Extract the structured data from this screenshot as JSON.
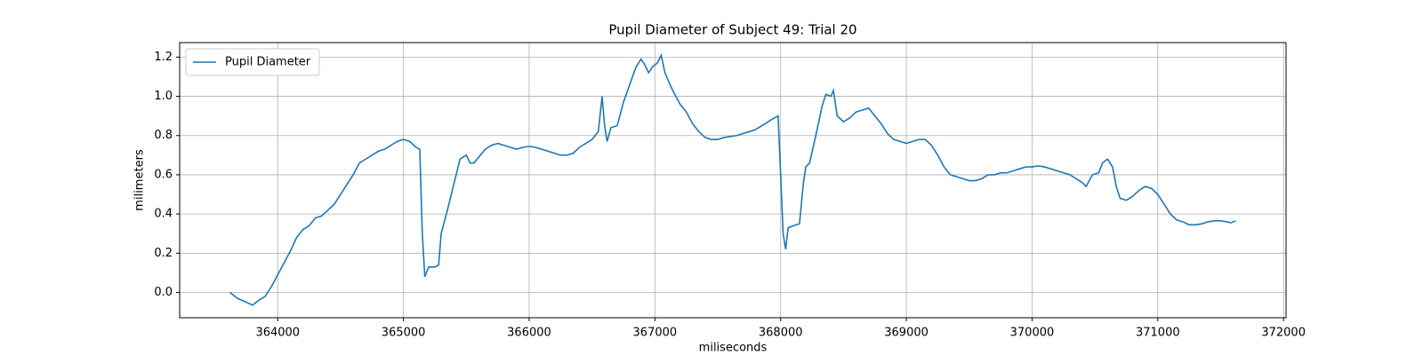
{
  "chart_data": {
    "type": "line",
    "title": "Pupil Diameter of Subject 49: Trial 20",
    "xlabel": "miliseconds",
    "ylabel": "milimeters",
    "x": [
      363620,
      363680,
      363750,
      363800,
      363850,
      363900,
      363950,
      364000,
      364050,
      364100,
      364150,
      364200,
      364250,
      364300,
      364350,
      364400,
      364450,
      364500,
      364550,
      364600,
      364650,
      364700,
      364750,
      364800,
      364850,
      364900,
      364950,
      365000,
      365050,
      365100,
      365130,
      365150,
      365170,
      365200,
      365250,
      365280,
      365300,
      365350,
      365400,
      365450,
      365500,
      365530,
      365560,
      365600,
      365650,
      365700,
      365750,
      365800,
      365850,
      365900,
      365950,
      366000,
      366050,
      366100,
      366150,
      366200,
      366250,
      366300,
      366350,
      366400,
      366450,
      366500,
      366550,
      366580,
      366600,
      366620,
      366650,
      366700,
      366750,
      366800,
      366850,
      366890,
      366920,
      366950,
      366980,
      367020,
      367050,
      367080,
      367120,
      367150,
      367200,
      367250,
      367300,
      367350,
      367400,
      367450,
      367500,
      367550,
      367600,
      367650,
      367700,
      367750,
      367800,
      367850,
      367900,
      367950,
      367980,
      368000,
      368020,
      368040,
      368060,
      368100,
      368150,
      368180,
      368200,
      368230,
      368280,
      368330,
      368360,
      368400,
      368420,
      368450,
      368500,
      368550,
      368600,
      368650,
      368700,
      368750,
      368800,
      368850,
      368900,
      368950,
      369000,
      369050,
      369100,
      369150,
      369200,
      369250,
      369300,
      369350,
      369400,
      369450,
      369500,
      369550,
      369600,
      369650,
      369700,
      369750,
      369800,
      369850,
      369900,
      369950,
      370000,
      370050,
      370100,
      370150,
      370200,
      370250,
      370300,
      370350,
      370400,
      370430,
      370480,
      370530,
      370560,
      370600,
      370640,
      370670,
      370700,
      370750,
      370800,
      370850,
      370900,
      370950,
      371000,
      371050,
      371100,
      371150,
      371200,
      371250,
      371300,
      371350,
      371400,
      371450,
      371500,
      371550,
      371580,
      371620
    ],
    "series": [
      {
        "name": "Pupil Diameter",
        "color": "#1f77b4",
        "values": [
          0.0,
          -0.03,
          -0.05,
          -0.065,
          -0.04,
          -0.02,
          0.03,
          0.09,
          0.15,
          0.21,
          0.28,
          0.32,
          0.34,
          0.38,
          0.39,
          0.42,
          0.45,
          0.5,
          0.55,
          0.6,
          0.66,
          0.68,
          0.7,
          0.72,
          0.73,
          0.75,
          0.77,
          0.78,
          0.77,
          0.74,
          0.73,
          0.3,
          0.08,
          0.13,
          0.13,
          0.14,
          0.3,
          0.42,
          0.55,
          0.68,
          0.7,
          0.66,
          0.66,
          0.69,
          0.73,
          0.75,
          0.76,
          0.75,
          0.74,
          0.73,
          0.74,
          0.745,
          0.74,
          0.73,
          0.72,
          0.71,
          0.7,
          0.7,
          0.71,
          0.74,
          0.76,
          0.78,
          0.82,
          1.0,
          0.85,
          0.77,
          0.84,
          0.85,
          0.97,
          1.06,
          1.15,
          1.19,
          1.16,
          1.12,
          1.15,
          1.17,
          1.21,
          1.12,
          1.06,
          1.02,
          0.96,
          0.92,
          0.86,
          0.82,
          0.79,
          0.78,
          0.78,
          0.79,
          0.795,
          0.8,
          0.81,
          0.82,
          0.83,
          0.85,
          0.87,
          0.89,
          0.9,
          0.6,
          0.3,
          0.22,
          0.33,
          0.34,
          0.35,
          0.55,
          0.64,
          0.66,
          0.8,
          0.95,
          1.01,
          1.0,
          1.03,
          0.9,
          0.87,
          0.89,
          0.92,
          0.93,
          0.94,
          0.9,
          0.86,
          0.81,
          0.78,
          0.77,
          0.76,
          0.77,
          0.78,
          0.78,
          0.75,
          0.7,
          0.64,
          0.6,
          0.59,
          0.58,
          0.57,
          0.57,
          0.58,
          0.6,
          0.6,
          0.61,
          0.61,
          0.62,
          0.63,
          0.64,
          0.64,
          0.645,
          0.64,
          0.63,
          0.62,
          0.61,
          0.6,
          0.58,
          0.56,
          0.54,
          0.6,
          0.61,
          0.66,
          0.68,
          0.64,
          0.54,
          0.48,
          0.47,
          0.49,
          0.52,
          0.54,
          0.53,
          0.5,
          0.45,
          0.4,
          0.37,
          0.36,
          0.345,
          0.345,
          0.35,
          0.36,
          0.365,
          0.365,
          0.36,
          0.355,
          0.365
        ]
      }
    ],
    "xlim": [
      363220,
      372020
    ],
    "ylim": [
      -0.129,
      1.274
    ],
    "xticks": [
      364000,
      365000,
      366000,
      367000,
      368000,
      369000,
      370000,
      371000,
      372000
    ],
    "yticks": [
      {
        "value": 0,
        "label": "0.0"
      },
      0.2,
      0.4,
      0.6,
      0.8,
      {
        "value": 1,
        "label": "1.0"
      },
      1.2
    ],
    "grid": true,
    "legend": "upper left"
  }
}
